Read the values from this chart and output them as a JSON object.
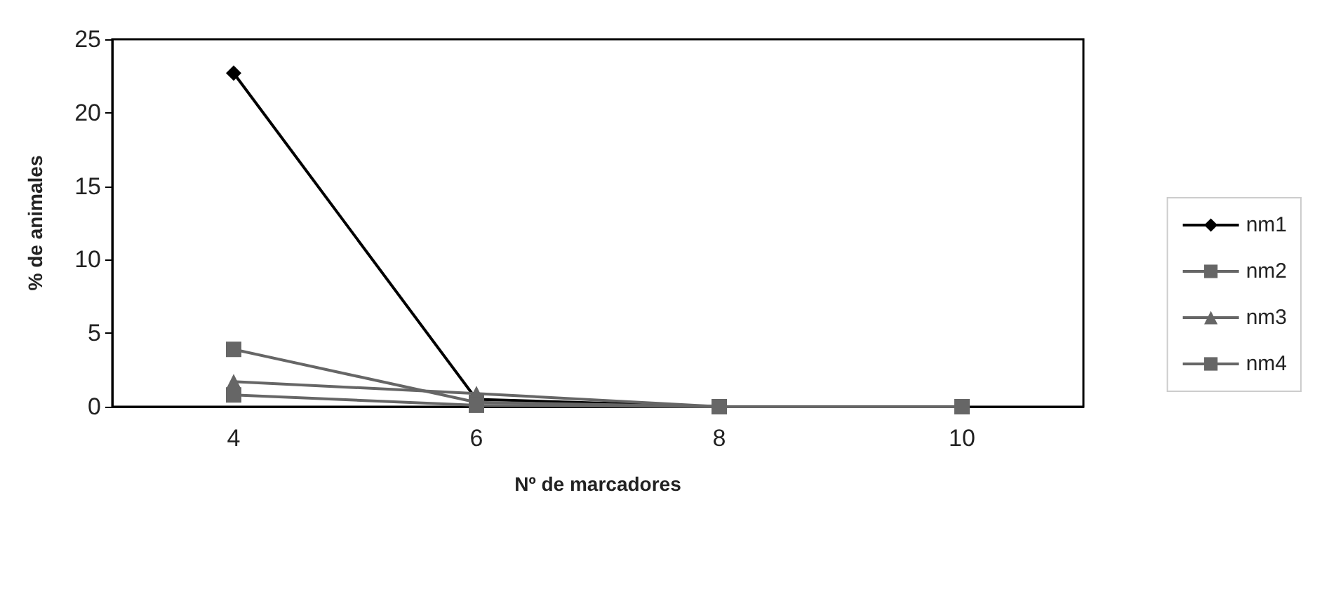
{
  "chart_data": {
    "type": "line",
    "xlabel": "Nº de marcadores",
    "ylabel": "% de animales",
    "categories": [
      "4",
      "6",
      "8",
      "10"
    ],
    "series": [
      {
        "name": "nm1",
        "color": "#000000",
        "marker": "diamond",
        "values": [
          22.7,
          0.5,
          0,
          0
        ]
      },
      {
        "name": "nm2",
        "color": "#666666",
        "marker": "square",
        "values": [
          3.9,
          0.3,
          0,
          0
        ]
      },
      {
        "name": "nm3",
        "color": "#666666",
        "marker": "triangle",
        "values": [
          1.7,
          0.9,
          0,
          0
        ]
      },
      {
        "name": "nm4",
        "color": "#666666",
        "marker": "square",
        "values": [
          0.8,
          0.1,
          0,
          0
        ]
      }
    ],
    "ylim": [
      0,
      25
    ],
    "yticks": [
      0,
      5,
      10,
      15,
      20,
      25
    ],
    "grid": false,
    "legend": "right",
    "line_style": "solid"
  }
}
